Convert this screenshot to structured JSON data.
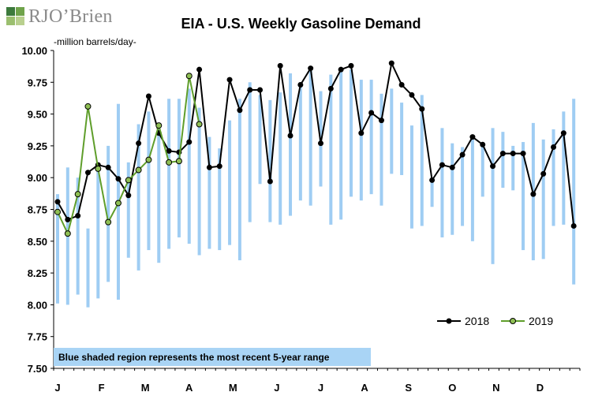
{
  "brand": {
    "logo_text": "RJO’Brien"
  },
  "chart_data": {
    "type": "line",
    "title": "EIA - U.S. Weekly Gasoline Demand",
    "ylabel": "million barrels/day",
    "ylim": [
      7.5,
      10.0
    ],
    "yticks": [
      "10.00",
      "9.75",
      "9.50",
      "9.25",
      "9.00",
      "8.75",
      "8.50",
      "8.25",
      "8.00",
      "7.75",
      "7.50"
    ],
    "x_tick_labels": [
      "J",
      "F",
      "M",
      "A",
      "M",
      "J",
      "J",
      "A",
      "S",
      "O",
      "N",
      "D"
    ],
    "x_weeks": 52,
    "legend": {
      "position": "bottom-right"
    },
    "note": "Blue shaded region represents the most recent 5-year range",
    "colors": {
      "range": "#9fcdf3",
      "s2018": "#000000",
      "s2019_line": "#5f9e2b",
      "s2019_fill": "#8fbf54",
      "note_bg": "#a9d4f5"
    },
    "range_5yr": [
      [
        8.01,
        8.87
      ],
      [
        8.0,
        9.08
      ],
      [
        8.08,
        9.0
      ],
      [
        7.98,
        8.6
      ],
      [
        8.05,
        9.05
      ],
      [
        8.18,
        9.25
      ],
      [
        8.04,
        9.58
      ],
      [
        8.37,
        9.12
      ],
      [
        8.27,
        9.42
      ],
      [
        8.43,
        9.52
      ],
      [
        8.33,
        9.38
      ],
      [
        8.44,
        9.62
      ],
      [
        8.53,
        9.62
      ],
      [
        8.48,
        9.7
      ],
      [
        8.39,
        9.55
      ],
      [
        8.44,
        9.32
      ],
      [
        8.43,
        9.23
      ],
      [
        8.47,
        9.45
      ],
      [
        8.35,
        9.62
      ],
      [
        8.65,
        9.75
      ],
      [
        8.95,
        9.65
      ],
      [
        8.65,
        9.61
      ],
      [
        8.63,
        9.67
      ],
      [
        8.7,
        9.82
      ],
      [
        8.82,
        9.75
      ],
      [
        8.78,
        9.84
      ],
      [
        8.93,
        9.68
      ],
      [
        8.63,
        9.81
      ],
      [
        8.67,
        9.85
      ],
      [
        8.85,
        9.85
      ],
      [
        8.82,
        9.77
      ],
      [
        8.87,
        9.77
      ],
      [
        8.78,
        9.66
      ],
      [
        9.03,
        9.7
      ],
      [
        9.02,
        9.59
      ],
      [
        8.6,
        9.41
      ],
      [
        8.62,
        9.65
      ],
      [
        8.77,
        9.0
      ],
      [
        8.53,
        9.39
      ],
      [
        8.55,
        9.27
      ],
      [
        8.62,
        9.24
      ],
      [
        8.5,
        9.3
      ],
      [
        8.85,
        9.25
      ],
      [
        8.32,
        9.39
      ],
      [
        8.92,
        9.36
      ],
      [
        8.9,
        9.25
      ],
      [
        8.43,
        9.28
      ],
      [
        8.35,
        9.43
      ],
      [
        8.36,
        9.3
      ],
      [
        8.62,
        9.38
      ],
      [
        8.63,
        9.52
      ],
      [
        8.16,
        9.62
      ]
    ],
    "series": [
      {
        "name": "2018",
        "values": [
          8.81,
          8.67,
          8.7,
          9.04,
          9.1,
          9.08,
          8.99,
          8.86,
          9.27,
          9.64,
          9.35,
          9.21,
          9.2,
          9.28,
          9.85,
          9.08,
          9.09,
          9.77,
          9.53,
          9.69,
          9.69,
          8.97,
          9.88,
          9.33,
          9.73,
          9.86,
          9.27,
          9.7,
          9.85,
          9.88,
          9.35,
          9.51,
          9.45,
          9.9,
          9.73,
          9.65,
          9.54,
          8.98,
          9.1,
          9.08,
          9.18,
          9.32,
          9.26,
          9.09,
          9.19,
          9.19,
          9.19,
          8.87,
          9.03,
          9.24,
          9.35,
          8.62
        ]
      },
      {
        "name": "2019",
        "values": [
          8.73,
          8.56,
          8.87,
          9.56,
          9.07,
          8.65,
          8.8,
          8.98,
          9.06,
          9.14,
          9.41,
          9.12,
          9.13,
          9.8,
          9.42
        ]
      }
    ]
  }
}
